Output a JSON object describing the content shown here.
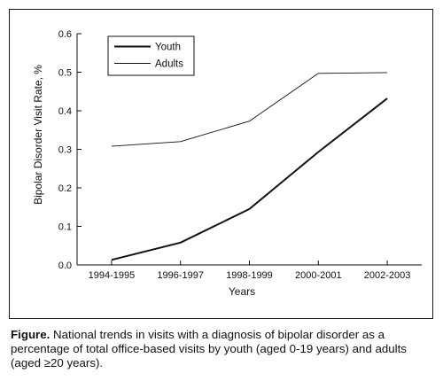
{
  "chart_data": {
    "type": "line",
    "xlabel": "Years",
    "ylabel": "Bipolar Disorder Visit Rate, %",
    "categories": [
      "1994-1995",
      "1996-1997",
      "1998-1999",
      "2000-2001",
      "2002-2003"
    ],
    "ylim": [
      0,
      0.6
    ],
    "yticks": [
      "0.0",
      "0.1",
      "0.2",
      "0.3",
      "0.4",
      "0.5",
      "0.6"
    ],
    "grid": false,
    "legend_position": "top-left",
    "series": [
      {
        "name": "Youth",
        "values": [
          0.013,
          0.058,
          0.145,
          0.293,
          0.432
        ],
        "color": "#111111",
        "line": "thick"
      },
      {
        "name": "Adults",
        "values": [
          0.308,
          0.32,
          0.373,
          0.497,
          0.499
        ],
        "color": "#111111",
        "line": "thin"
      }
    ]
  },
  "caption": {
    "lead": "Figure.",
    "text": " National trends in visits with a diagnosis of bipolar disorder as a percentage of total office-based visits by youth (aged 0-19 years) and adults (aged ≥20 years)."
  }
}
